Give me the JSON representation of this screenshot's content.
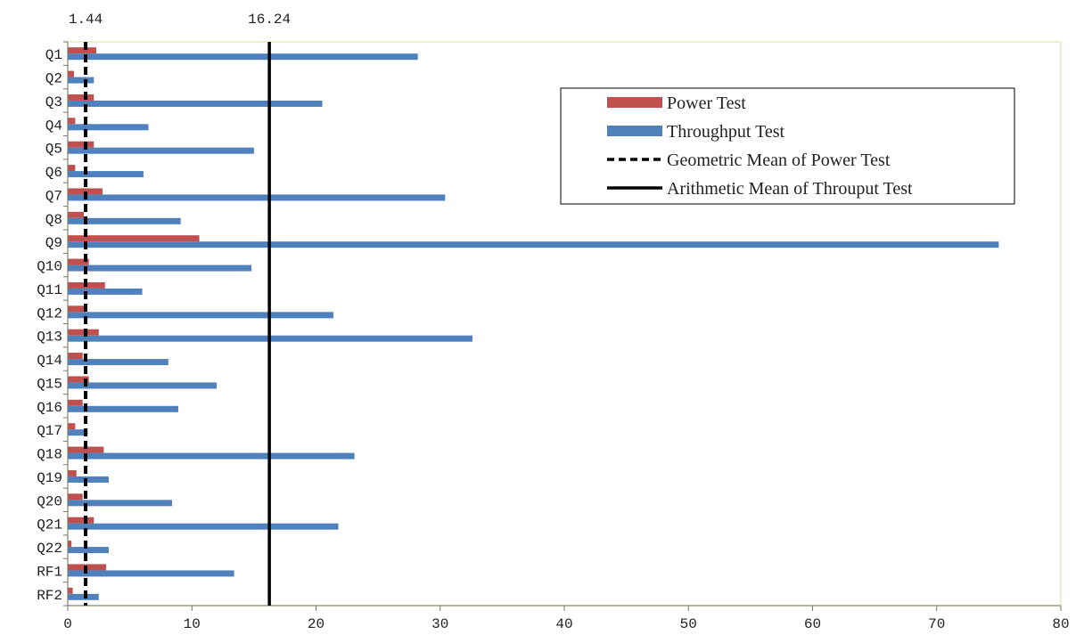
{
  "chart_data": {
    "type": "bar",
    "orientation": "horizontal",
    "categories": [
      "Q1",
      "Q2",
      "Q3",
      "Q4",
      "Q5",
      "Q6",
      "Q7",
      "Q8",
      "Q9",
      "Q10",
      "Q11",
      "Q12",
      "Q13",
      "Q14",
      "Q15",
      "Q16",
      "Q17",
      "Q18",
      "Q19",
      "Q20",
      "Q21",
      "Q22",
      "RF1",
      "RF2"
    ],
    "series": [
      {
        "name": "Power Test",
        "color": "#c0504d",
        "values": [
          2.3,
          0.5,
          2.1,
          0.6,
          2.1,
          0.6,
          2.8,
          1.3,
          10.6,
          1.7,
          3.0,
          1.4,
          2.5,
          1.2,
          1.7,
          1.2,
          0.6,
          2.9,
          0.7,
          1.2,
          2.1,
          0.3,
          3.1,
          0.4
        ]
      },
      {
        "name": "Throughput Test",
        "color": "#4f81bd",
        "values": [
          28.2,
          2.1,
          20.5,
          6.5,
          15.0,
          6.1,
          30.4,
          9.1,
          75.0,
          14.8,
          6.0,
          21.4,
          32.6,
          8.1,
          12.0,
          8.9,
          1.6,
          23.1,
          3.3,
          8.4,
          21.8,
          3.3,
          13.4,
          2.5
        ]
      }
    ],
    "reference_lines": [
      {
        "name": "Geometric Mean of Power Test",
        "value": 1.44,
        "label": "1.44",
        "style": "dashed",
        "color": "#000000"
      },
      {
        "name": "Arithmetic Mean of Throuput Test",
        "value": 16.24,
        "label": "16.24",
        "style": "solid",
        "color": "#000000"
      }
    ],
    "xlim": [
      0,
      80
    ],
    "xticks": [
      0,
      10,
      20,
      30,
      40,
      50,
      60,
      70,
      80
    ],
    "legend_position": "top-right",
    "plot_background": "#ffffff",
    "plot_border_color": "#f0f0c8",
    "grid": false
  }
}
